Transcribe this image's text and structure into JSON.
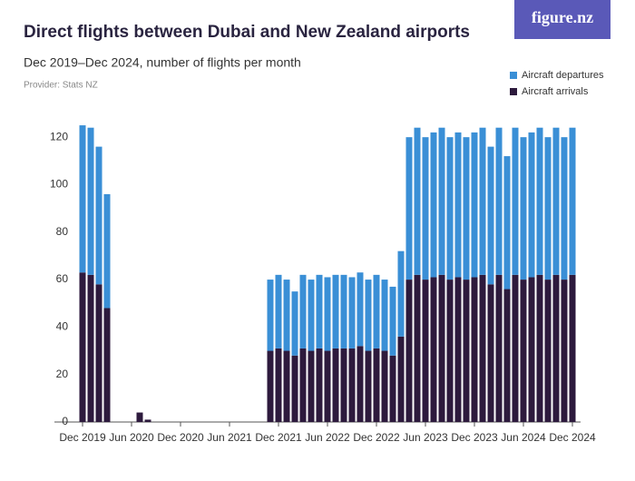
{
  "chart_data": {
    "type": "stacked_bar",
    "title": "Direct flights between Dubai and New Zealand airports",
    "subtitle": "Dec 2019–Dec 2024, number of flights per month",
    "source": "Provider: Stats NZ",
    "brand": "figure.nz",
    "categories": [
      "Dec 2019",
      null,
      null,
      null,
      null,
      null,
      "Jun 2020",
      null,
      null,
      null,
      null,
      null,
      "Dec 2020",
      null,
      null,
      null,
      null,
      null,
      "Jun 2021",
      null,
      null,
      null,
      null,
      null,
      "Dec 2021",
      null,
      null,
      null,
      null,
      null,
      "Jun 2022",
      null,
      null,
      null,
      null,
      null,
      "Dec 2022",
      null,
      null,
      null,
      null,
      null,
      "Jun 2023",
      null,
      null,
      null,
      null,
      null,
      "Dec 2023",
      null,
      null,
      null,
      null,
      null,
      "Jun 2024",
      null,
      null,
      null,
      null,
      null,
      "Dec 2024"
    ],
    "series": [
      {
        "name": "Aircraft arrivals",
        "color": "#2d1a3d",
        "values": [
          63,
          62,
          58,
          48,
          0,
          0,
          0,
          4,
          1,
          0,
          0,
          0,
          0,
          0,
          0,
          0,
          0,
          0,
          0,
          0,
          0,
          0,
          0,
          30,
          31,
          30,
          28,
          31,
          30,
          31,
          30,
          31,
          31,
          31,
          32,
          30,
          31,
          30,
          28,
          36,
          60,
          62,
          60,
          61,
          62,
          60,
          61,
          60,
          61,
          62,
          58,
          62,
          56,
          62,
          60,
          61,
          62,
          60,
          62,
          60,
          62
        ]
      },
      {
        "name": "Aircraft departures",
        "color": "#3a8fd6",
        "values": [
          62,
          62,
          58,
          48,
          0,
          0,
          0,
          0,
          0,
          0,
          0,
          0,
          0,
          0,
          0,
          0,
          0,
          0,
          0,
          0,
          0,
          0,
          0,
          30,
          31,
          30,
          27,
          31,
          30,
          31,
          31,
          31,
          31,
          30,
          31,
          30,
          31,
          30,
          29,
          36,
          60,
          62,
          60,
          61,
          62,
          60,
          61,
          60,
          61,
          62,
          58,
          62,
          56,
          62,
          60,
          61,
          62,
          60,
          62,
          60,
          62
        ]
      }
    ],
    "ylim": [
      0,
      130
    ],
    "yticks": [
      0,
      20,
      40,
      60,
      80,
      100,
      120
    ],
    "grid": false,
    "legend": "top-right"
  }
}
